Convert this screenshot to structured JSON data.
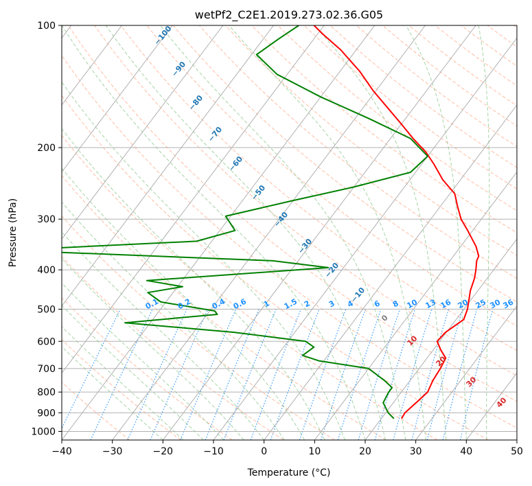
{
  "chart_data": {
    "type": "skew-t",
    "title": "wetPf2_C2E1.2019.273.02.36.G05",
    "xlabel": "Temperature (°C)",
    "ylabel": "Pressure (hPa)",
    "xlim": [
      -40,
      50
    ],
    "ylim": [
      1050,
      100
    ],
    "y_scale": "log",
    "x_ticks": [
      "−40",
      "−30",
      "−20",
      "−10",
      "0",
      "10",
      "20",
      "30",
      "40",
      "50"
    ],
    "y_ticks": [
      "100",
      "200",
      "300",
      "400",
      "500",
      "600",
      "700",
      "800",
      "900",
      "1000"
    ],
    "grid": true,
    "colors": {
      "temperature": "#ff0000",
      "dewpoint": "#008000",
      "isotherm": "#b0b0b0",
      "dry_adiabat": "#ffa07a",
      "moist_adiabat": "#90c890",
      "mixing_ratio": "#1e90ff",
      "dry_adiabat_label": "#d62728",
      "moist_adiabat_label": "#1f77b4",
      "mixing_ratio_label": "#1e90ff"
    },
    "series": [
      {
        "style": "temperature",
        "points": [
          [
            24,
            930
          ],
          [
            23.8,
            900
          ],
          [
            24.5,
            850
          ],
          [
            25.2,
            800
          ],
          [
            24.5,
            750
          ],
          [
            24.2,
            700
          ],
          [
            23.7,
            660
          ],
          [
            21.5,
            630
          ],
          [
            19.5,
            600
          ],
          [
            19.8,
            570
          ],
          [
            21.5,
            530
          ],
          [
            20.7,
            500
          ],
          [
            18.5,
            450
          ],
          [
            17.5,
            420
          ],
          [
            16.5,
            400
          ],
          [
            15.3,
            380
          ],
          [
            15,
            370
          ],
          [
            13,
            350
          ],
          [
            9,
            320
          ],
          [
            6,
            300
          ],
          [
            3.5,
            280
          ],
          [
            1,
            260
          ],
          [
            -3.5,
            240
          ],
          [
            -7.5,
            220
          ],
          [
            -11,
            205
          ],
          [
            -15.5,
            190
          ],
          [
            -20,
            175
          ],
          [
            -25,
            160
          ],
          [
            -30.5,
            145
          ],
          [
            -36,
            130
          ],
          [
            -43,
            115
          ],
          [
            -49,
            105
          ],
          [
            -52,
            100
          ]
        ]
      },
      {
        "style": "dewpoint",
        "points": [
          [
            22.5,
            930
          ],
          [
            20.5,
            900
          ],
          [
            18,
            850
          ],
          [
            17.5,
            800
          ],
          [
            17.5,
            780
          ],
          [
            15,
            750
          ],
          [
            10,
            700
          ],
          [
            -1,
            670
          ],
          [
            -5,
            650
          ],
          [
            -4,
            620
          ],
          [
            -6.5,
            600
          ],
          [
            -22,
            570
          ],
          [
            -45,
            540
          ],
          [
            -28,
            515
          ],
          [
            -29,
            505
          ],
          [
            -41,
            480
          ],
          [
            -45,
            455
          ],
          [
            -39,
            440
          ],
          [
            -47,
            425
          ],
          [
            -13,
            395
          ],
          [
            -25,
            380
          ],
          [
            -74,
            360
          ],
          [
            -73,
            355
          ],
          [
            -43,
            340
          ],
          [
            -37,
            320
          ],
          [
            -41,
            295
          ],
          [
            -30,
            270
          ],
          [
            -20,
            250
          ],
          [
            -11,
            230
          ],
          [
            -10,
            210
          ],
          [
            -16,
            190
          ],
          [
            -27,
            170
          ],
          [
            -40,
            150
          ],
          [
            -52,
            132
          ],
          [
            -59,
            118
          ],
          [
            -57,
            108
          ],
          [
            -55,
            100
          ]
        ]
      }
    ],
    "mixing_ratio_labels": [
      "0.1",
      "0.2",
      "0.4",
      "0.6",
      "1",
      "1.5",
      "2",
      "3",
      "4",
      "6",
      "8",
      "10",
      "13",
      "16",
      "20",
      "25",
      "30",
      "36"
    ],
    "dry_adiabat_labels": [
      "0",
      "10",
      "20",
      "30",
      "40"
    ],
    "moist_adiabat_labels": [
      "−100",
      "−90",
      "−80",
      "−70",
      "−60",
      "−50",
      "−40",
      "−30",
      "−20",
      "−10"
    ]
  }
}
